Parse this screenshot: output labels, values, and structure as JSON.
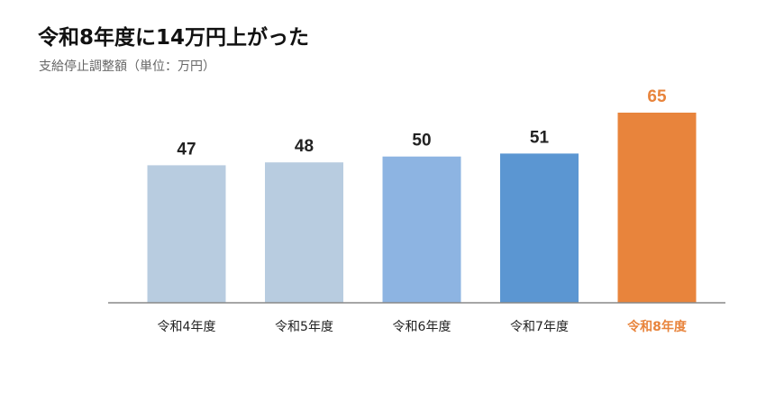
{
  "title": "令和8年度に14万円上がった",
  "subtitle": "支給停止調整額（単位：万円）",
  "chart_data": {
    "type": "bar",
    "categories": [
      "令和4年度",
      "令和5年度",
      "令和6年度",
      "令和7年度",
      "令和8年度"
    ],
    "values": [
      47,
      48,
      50,
      51,
      65
    ],
    "colors": [
      "#b8cce0",
      "#b8cce0",
      "#8db4e2",
      "#5b96d2",
      "#e8843c"
    ],
    "label_colors": [
      "#222222",
      "#222222",
      "#222222",
      "#222222",
      "#e8843c"
    ],
    "highlight_index": 4,
    "axis_color": "#888888",
    "ylim": [
      0,
      65
    ],
    "grid": false,
    "legend": "none"
  }
}
